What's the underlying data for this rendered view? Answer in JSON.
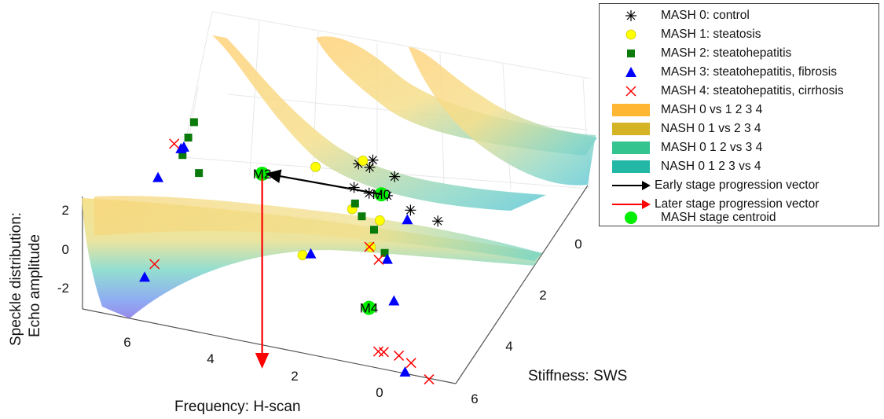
{
  "chart_data": {
    "type": "scatter3d",
    "title": "",
    "xlabel": "Frequency: H-scan",
    "ylabel": "Stiffness: SWS",
    "zlabel_lines": [
      "Speckle distribution:",
      "Echo amplitude"
    ],
    "x_ticks": [
      0,
      2,
      4,
      6
    ],
    "y_ticks": [
      0,
      2,
      4,
      6
    ],
    "z_ticks": [
      -2,
      0,
      2
    ],
    "x_tick_labels": [
      "0",
      "2",
      "4",
      "6"
    ],
    "y_tick_labels": [
      "0",
      "2",
      "4",
      "6"
    ],
    "z_tick_labels": [
      "-2",
      "0",
      "2"
    ],
    "xlim": [
      -1,
      7.5
    ],
    "ylim": [
      -1,
      6
    ],
    "zlim": [
      -3.5,
      3.5
    ],
    "grid": true,
    "legend_position": "top-right",
    "series": [
      {
        "name": "MASH 0: control",
        "marker": "asterisk",
        "color": "#000000",
        "points": [
          [
            0.5,
            -0.2,
            3.5
          ],
          [
            0.0,
            -0.7,
            3.3
          ],
          [
            -0.4,
            -0.3,
            3.0
          ],
          [
            0.2,
            -0.3,
            3.3
          ],
          [
            -0.1,
            0.1,
            2.4
          ],
          [
            -0.5,
            0.6,
            2.3
          ],
          [
            -1.0,
            1.1,
            2.4
          ],
          [
            0.7,
            0.1,
            2.6
          ],
          [
            0.4,
            0.3,
            2.6
          ]
        ]
      },
      {
        "name": "MASH 1: steatosis",
        "marker": "circle",
        "color": "#ffff00",
        "points": [
          [
            0.3,
            -0.5,
            3.4
          ],
          [
            1.5,
            -0.3,
            3.0
          ],
          [
            0.9,
            0.6,
            2.0
          ],
          [
            0.3,
            0.8,
            1.8
          ],
          [
            2.9,
            3.2,
            1.9
          ],
          [
            0.7,
            1.4,
            1.0
          ]
        ]
      },
      {
        "name": "MASH 2: steatohepatitis",
        "marker": "square",
        "color": "#0a7a0a",
        "points": [
          [
            4.2,
            -1.0,
            3.8
          ],
          [
            4.4,
            -0.8,
            3.2
          ],
          [
            4.6,
            -0.6,
            2.5
          ],
          [
            4.3,
            -0.3,
            2.0
          ],
          [
            0.8,
            0.5,
            2.2
          ],
          [
            0.7,
            0.7,
            1.8
          ],
          [
            0.5,
            1.0,
            1.5
          ],
          [
            0.4,
            1.5,
            0.9
          ]
        ]
      },
      {
        "name": "MASH 3: steatohepatitis, fibrosis",
        "marker": "triangle",
        "color": "#0000ff",
        "points": [
          [
            4.7,
            -0.4,
            3.0
          ],
          [
            4.6,
            -0.5,
            3.0
          ],
          [
            5.5,
            0.4,
            2.2
          ],
          [
            2.3,
            1.9,
            0.8
          ],
          [
            -0.3,
            1.0,
            2.2
          ],
          [
            0.4,
            1.7,
            0.8
          ],
          [
            0.8,
            3.5,
            0.5
          ],
          [
            6.6,
            2.9,
            -0.4
          ],
          [
            1.0,
            5.0,
            -1.5
          ]
        ]
      },
      {
        "name": "MASH 4: steatohepatitis, cirrhosis",
        "marker": "x",
        "color": "#ff0000",
        "points": [
          [
            4.8,
            -0.6,
            3.0
          ],
          [
            6.3,
            2.7,
            0.1
          ],
          [
            1.3,
            3.9,
            -1.7
          ],
          [
            1.2,
            4.0,
            -1.6
          ],
          [
            0.9,
            4.2,
            -1.5
          ],
          [
            0.7,
            4.5,
            -1.5
          ],
          [
            0.3,
            4.6,
            -2.1
          ],
          [
            0.8,
            1.6,
            1.2
          ],
          [
            0.7,
            2.0,
            1.0
          ]
        ]
      }
    ],
    "surfaces": [
      {
        "name": "MASH 0 vs 1 2 3 4",
        "color": "#ffb733"
      },
      {
        "name": "NASH 0 1 vs 2 3 4",
        "color": "#d4b425"
      },
      {
        "name": "MASH 0 1 2 vs 3 4",
        "color": "#33c490"
      },
      {
        "name": "NASH 0 1 2 3 vs 4",
        "color": "#22b8a5"
      }
    ],
    "vectors": [
      {
        "name": "Early stage progression vector",
        "color": "#000000",
        "from_label": "M0",
        "to_label": "M2"
      },
      {
        "name": "Later stage progression vector",
        "color": "#ff0000",
        "from_label": "M2",
        "to_label": "M4"
      }
    ],
    "centroids": {
      "name": "MASH stage centroid",
      "color": "#00ee00",
      "points": [
        {
          "label": "M0",
          "x": 0.2,
          "y": 0.6,
          "z": 2.9
        },
        {
          "label": "M2",
          "x": 3.0,
          "y": 0.4,
          "z": 3.0
        },
        {
          "label": "M4",
          "x": 1.4,
          "y": 3.5,
          "z": 0.0
        }
      ]
    }
  }
}
